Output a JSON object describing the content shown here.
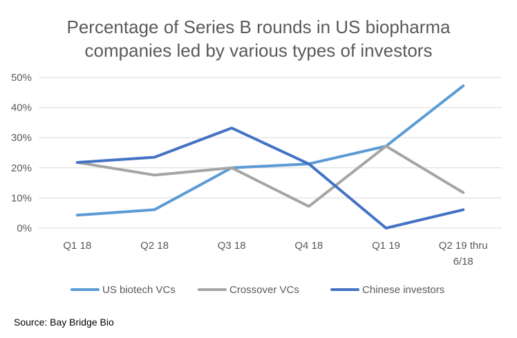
{
  "chart_data": {
    "type": "line",
    "title_lines": [
      "Percentage of Series B rounds in US biopharma",
      "companies led by various types of investors"
    ],
    "categories": [
      [
        "Q1 18"
      ],
      [
        "Q2 18"
      ],
      [
        "Q3 18"
      ],
      [
        "Q4 18"
      ],
      [
        "Q1 19"
      ],
      [
        "Q2 19 thru",
        "6/18"
      ]
    ],
    "y_ticks": [
      "0%",
      "10%",
      "20%",
      "30%",
      "40%",
      "50%"
    ],
    "ylim": [
      0,
      50
    ],
    "grid": true,
    "legend_position": "bottom",
    "series": [
      {
        "name": "US biotech VCs",
        "color": "#5B9BD5",
        "values": [
          4.3,
          6.1,
          20.0,
          21.3,
          27.2,
          47.2
        ]
      },
      {
        "name": "Crossover VCs",
        "color": "#A5A5A5",
        "values": [
          21.8,
          17.6,
          20.0,
          7.2,
          27.2,
          11.8
        ]
      },
      {
        "name": "Chinese investors",
        "color": "#4472C4",
        "values": [
          21.8,
          23.5,
          33.2,
          21.3,
          0.0,
          6.1
        ]
      }
    ]
  },
  "source": "Source: Bay Bridge Bio"
}
